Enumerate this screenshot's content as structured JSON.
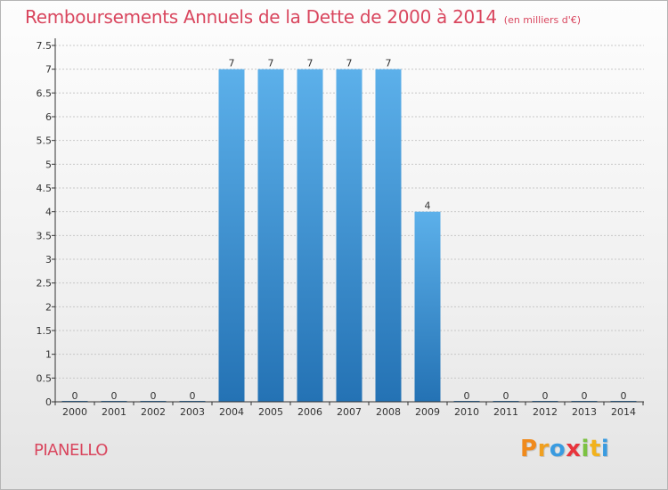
{
  "header": {
    "title": "Remboursements Annuels de la Dette de 2000 à 2014",
    "subtitle": "(en milliers d'€)"
  },
  "footer": {
    "commune": "PIANELLO",
    "logo_letters": [
      "P",
      "r",
      "o",
      "x",
      "i",
      "t",
      "i"
    ],
    "logo_colors": [
      "#f08a1c",
      "#f0a020",
      "#3a9be0",
      "#e8343c",
      "#7cc242",
      "#f2b21c",
      "#3a9be0"
    ]
  },
  "colors": {
    "title": "#d9465e",
    "bar_light": "#5cb0ea",
    "bar_dark": "#2472b4",
    "grid": "#c8c8c8",
    "axis": "#333333"
  },
  "chart_data": {
    "type": "bar",
    "title": "Remboursements Annuels de la Dette de 2000 à 2014",
    "subtitle": "(en milliers d'€)",
    "xlabel": "",
    "ylabel": "",
    "ylim": [
      0,
      7.5
    ],
    "grid": true,
    "y_ticks": [
      "0",
      "0.5",
      "1",
      "1.5",
      "2",
      "2.5",
      "3",
      "3.5",
      "4",
      "4.5",
      "5",
      "5.5",
      "6",
      "6.5",
      "7",
      "7.5"
    ],
    "categories": [
      "2000",
      "2001",
      "2002",
      "2003",
      "2004",
      "2005",
      "2006",
      "2007",
      "2008",
      "2009",
      "2010",
      "2011",
      "2012",
      "2013",
      "2014"
    ],
    "values": [
      0,
      0,
      0,
      0,
      7,
      7,
      7,
      7,
      7,
      4,
      0,
      0,
      0,
      0,
      0
    ],
    "value_labels": [
      "0",
      "0",
      "0",
      "0",
      "7",
      "7",
      "7",
      "7",
      "7",
      "4",
      "0",
      "0",
      "0",
      "0",
      "0"
    ]
  }
}
